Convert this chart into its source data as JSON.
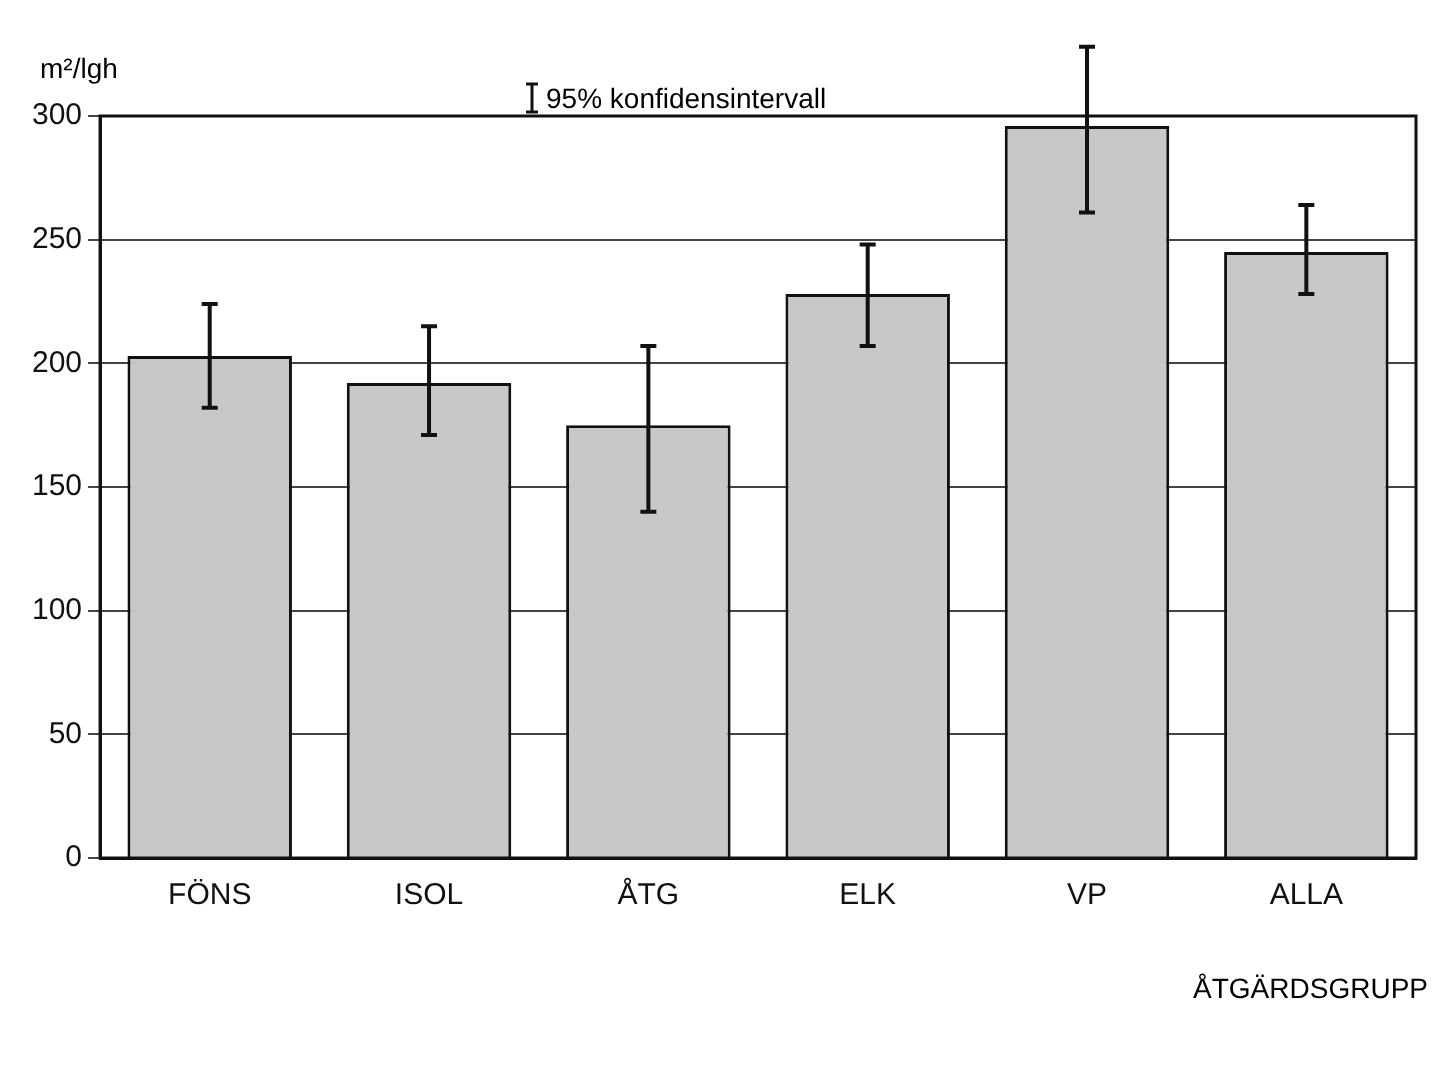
{
  "chart_data": {
    "type": "bar",
    "ylabel": "m²/lgh",
    "xlabel": "ÅTGÄRDSGRUPP",
    "annotations": [
      "95% konfidensintervall"
    ],
    "categories": [
      "FÖNS",
      "ISOL",
      "ÅTG",
      "ELK",
      "VP",
      "ALLA"
    ],
    "values": [
      203,
      192,
      175,
      228,
      296,
      245
    ],
    "errors": [
      [
        182,
        224
      ],
      [
        171,
        215
      ],
      [
        140,
        207
      ],
      [
        207,
        248
      ],
      [
        261,
        328
      ],
      [
        228,
        264
      ]
    ],
    "color": "#c8c8c8",
    "ylim": [
      0,
      300
    ],
    "yticks": [
      0,
      50,
      100,
      150,
      200,
      250,
      300
    ],
    "grid": "y",
    "legend": false
  }
}
